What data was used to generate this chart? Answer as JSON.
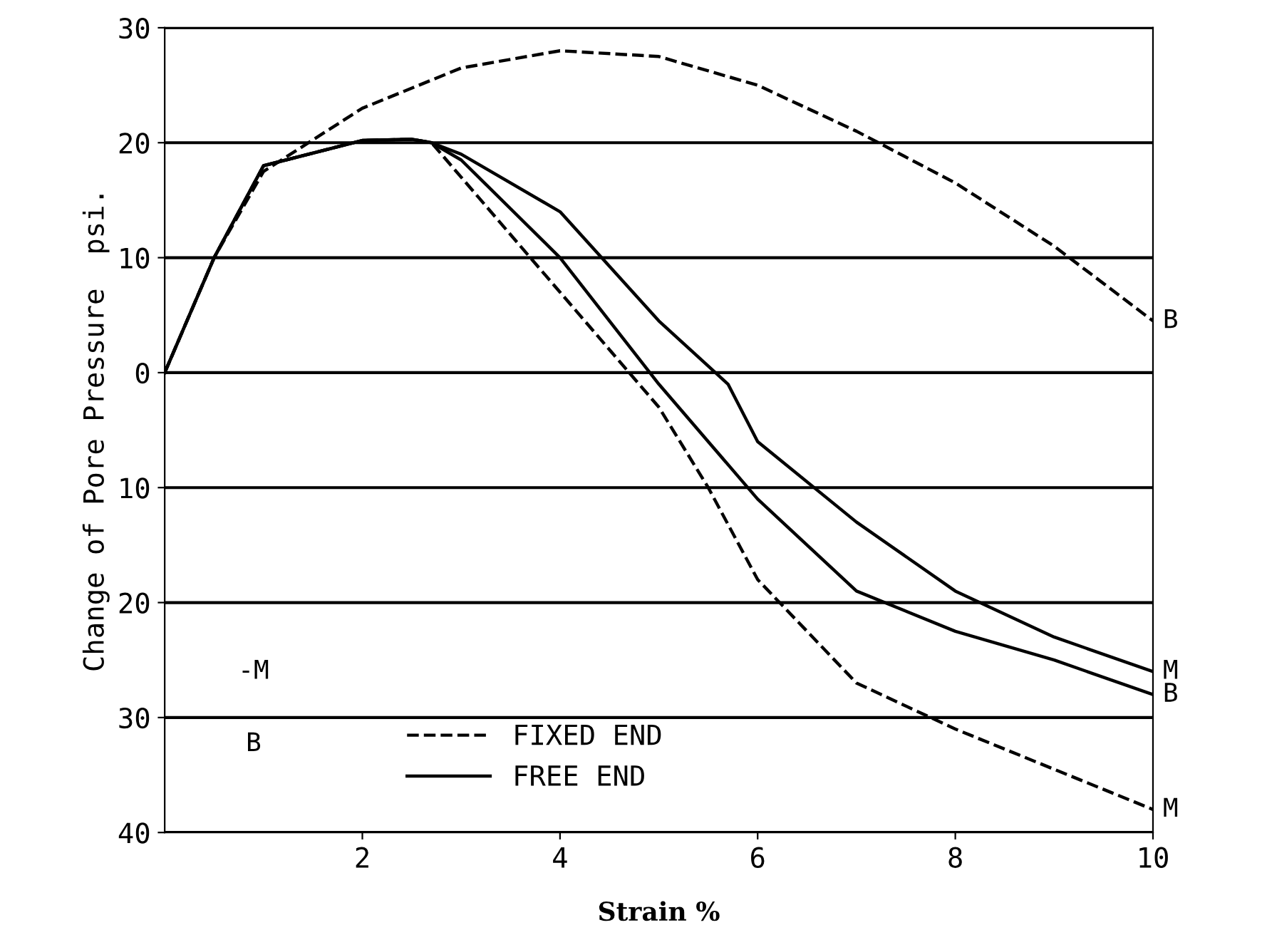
{
  "chart_data": {
    "type": "line",
    "ylabel": "Change of Pore Pressure  psi.",
    "xlabel": "Strain %",
    "xlim": [
      0,
      10
    ],
    "xticks": [
      2,
      4,
      6,
      8,
      10
    ],
    "ylim": [
      -40,
      30
    ],
    "yticks": [
      {
        "value": -40,
        "label": "40"
      },
      {
        "value": -30,
        "label": "30"
      },
      {
        "value": -20,
        "label": "20"
      },
      {
        "value": -10,
        "label": "10"
      },
      0,
      10,
      20,
      30
    ],
    "grid": "y",
    "legend": "right",
    "marker": "none",
    "series": [
      {
        "name": "B",
        "color": "#000000",
        "line_style": "dashed",
        "x": [
          0,
          0.5,
          1,
          2,
          3,
          4,
          5,
          6,
          7,
          8,
          9,
          10
        ],
        "values": [
          0,
          10,
          17.5,
          23,
          26.5,
          28,
          27.5,
          25,
          21,
          16.5,
          11,
          4.5
        ]
      },
      {
        "name": "M",
        "color": "#000000",
        "line_style": "dashed",
        "x": [
          0,
          0.5,
          1,
          2,
          2.5,
          2.7,
          3,
          4,
          5,
          5.5,
          6,
          7,
          8,
          9,
          10
        ],
        "values": [
          0,
          10,
          18,
          20.2,
          20.3,
          20,
          17,
          7,
          -3,
          -10,
          -18,
          -27,
          -31,
          -34.5,
          -38
        ]
      },
      {
        "name": "M",
        "color": "#000000",
        "line_style": "solid",
        "x": [
          0,
          0.5,
          1,
          2,
          2.5,
          2.7,
          3,
          4,
          5,
          5.7,
          6,
          7,
          8,
          9,
          10
        ],
        "values": [
          0,
          10,
          18,
          20.2,
          20.3,
          20,
          19,
          14,
          4.5,
          -1,
          -6,
          -13,
          -19,
          -23,
          -26
        ]
      },
      {
        "name": "B",
        "color": "#000000",
        "line_style": "solid",
        "x": [
          0,
          0.5,
          1,
          2,
          2.5,
          2.7,
          3,
          4,
          5,
          5.5,
          6,
          7,
          8,
          9,
          10
        ],
        "values": [
          0,
          10,
          18,
          20.2,
          20.3,
          20,
          18.5,
          10,
          -1,
          -6,
          -11,
          -19,
          -22.5,
          -25,
          -28
        ]
      }
    ],
    "annotations": [
      "FIXED END",
      "FREE END",
      "-M",
      "B"
    ]
  }
}
